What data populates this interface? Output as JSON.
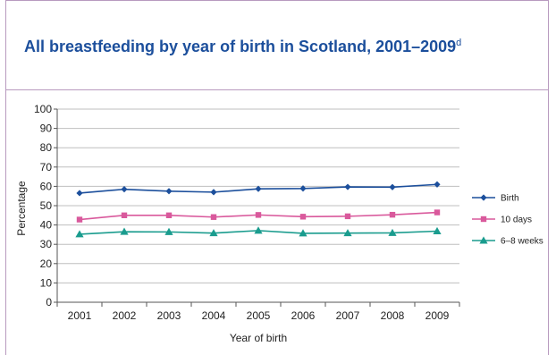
{
  "colors": {
    "title": "#1c4f9c",
    "border": "#b89abf",
    "grid": "#bfbfbf",
    "axis": "#555555"
  },
  "chart_data": {
    "type": "line",
    "title": "All breastfeeding by year of birth in Scotland, 2001–2009",
    "title_footnote": "d",
    "xlabel": "Year of birth",
    "ylabel": "Percentage",
    "categories": [
      "2001",
      "2002",
      "2003",
      "2004",
      "2005",
      "2006",
      "2007",
      "2008",
      "2009"
    ],
    "ylim": [
      0,
      100
    ],
    "yticks": [
      0,
      10,
      20,
      30,
      40,
      50,
      60,
      70,
      80,
      90,
      100
    ],
    "grid": true,
    "legend_position": "right",
    "series": [
      {
        "name": "Birth",
        "color": "#1c4f9c",
        "marker": "diamond",
        "values": [
          56.5,
          58.5,
          57.5,
          57.0,
          58.7,
          58.9,
          59.7,
          59.6,
          61.0
        ]
      },
      {
        "name": "10 days",
        "color": "#d9599c",
        "marker": "square",
        "values": [
          42.8,
          45.0,
          45.0,
          44.1,
          45.2,
          44.3,
          44.5,
          45.3,
          46.5
        ]
      },
      {
        "name": "6–8 weeks",
        "color": "#1a9c8e",
        "marker": "triangle",
        "values": [
          35.2,
          36.5,
          36.4,
          35.8,
          37.1,
          35.7,
          35.8,
          35.9,
          36.8
        ]
      }
    ]
  }
}
